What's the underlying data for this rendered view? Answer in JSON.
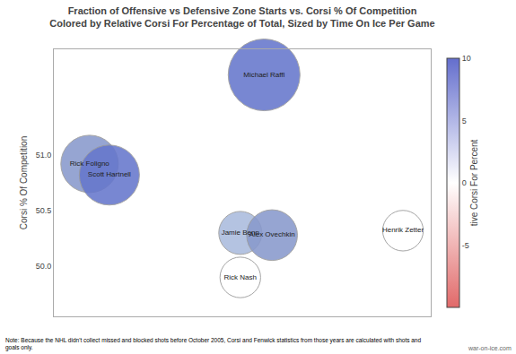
{
  "chart_data": {
    "type": "scatter",
    "marker": "bubble",
    "title": "Fraction of Offensive vs Defensive Zone Starts vs. Corsi % Of Competition",
    "subtitle": "Colored by Relative Corsi For Percentage of Total, Sized by Time On Ice Per Game",
    "ylabel": "Corsi % Of Competition",
    "labels": [
      "Michael Raffl",
      "Rick Foligno",
      "Scott Hartnell",
      "Jamie Benn",
      "Alex Ovechkin",
      "Henrik Zetter",
      "Rick Nash"
    ],
    "x": [
      0.58,
      0.14,
      0.19,
      0.52,
      0.6,
      0.93,
      0.52
    ],
    "values": [
      51.72,
      50.92,
      50.82,
      50.3,
      50.28,
      50.32,
      49.9
    ],
    "sizes": [
      5000,
      3200,
      3500,
      1800,
      2500,
      1600,
      1600
    ],
    "colors": [
      "#6677cc",
      "#8899cc",
      "#6677cc",
      "#aabbdd",
      "#8899cc",
      "#ffffff",
      "#ffffff"
    ],
    "xlim": [
      0.05,
      1.0
    ],
    "xticks": [],
    "ylim": [
      49.55,
      51.95
    ],
    "yticks": [
      {
        "value": 50.0,
        "label": "50.0"
      },
      {
        "value": 50.5,
        "label": "50.5"
      },
      {
        "value": 51.0,
        "label": "51.0"
      }
    ],
    "tick_labels": "y",
    "grid": false,
    "colorbar_title": "tive Corsi For Percent",
    "colorbar_range": [
      -10,
      10
    ],
    "colorbar_ticks": [
      10,
      5,
      0,
      -5
    ],
    "colorbar_colors": [
      "#e16969",
      "#ffffff",
      "#646ecd"
    ],
    "annotations": [
      {
        "text": "Note: Because the NHL didn't collect missed and blocked shots before October 2005, Corsi and Fenwick statistics from those years are calculated with shots and\ngoals only."
      },
      {
        "text": "war-on-ice.com"
      }
    ]
  }
}
